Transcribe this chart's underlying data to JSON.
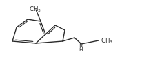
{
  "bg_color": "#ffffff",
  "line_color": "#2a2a2a",
  "lw": 1.0,
  "figsize": [
    2.06,
    1.05
  ],
  "dpi": 100,
  "font_size": 6.2,
  "font_size_small": 5.2
}
